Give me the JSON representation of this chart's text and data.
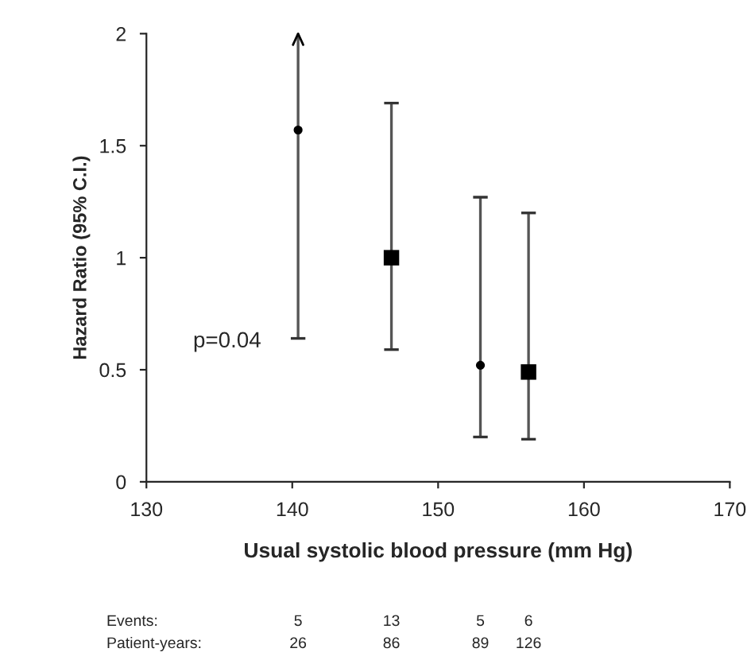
{
  "chart_data": {
    "type": "scatter",
    "xlabel": "Usual systolic blood pressure (mm Hg)",
    "ylabel": "Hazard Ratio (95% C.I.)",
    "series": [
      {
        "x": [
          140.4,
          152.9
        ],
        "values": [
          1.57,
          0.52
        ],
        "errors": [
          [
            0.64,
            2.0
          ],
          [
            0.2,
            1.27
          ]
        ],
        "color": "#000000",
        "marker": "circle"
      },
      {
        "x": [
          146.8,
          156.2
        ],
        "values": [
          1.0,
          0.49
        ],
        "errors": [
          [
            0.59,
            1.69
          ],
          [
            0.19,
            1.2
          ]
        ],
        "color": "#000000",
        "marker": "square"
      }
    ],
    "xlim": [
      130,
      170
    ],
    "xticks": [
      130,
      140,
      150,
      160,
      170
    ],
    "ylim": [
      0,
      2
    ],
    "yticks": [
      0,
      0.5,
      1,
      1.5,
      2
    ],
    "grid": false,
    "legend": false,
    "annotations": [
      "p=0.04",
      "Events:",
      "5",
      "13",
      "5",
      "6",
      "Patient-years:",
      "26",
      "86",
      "89",
      "126"
    ]
  }
}
